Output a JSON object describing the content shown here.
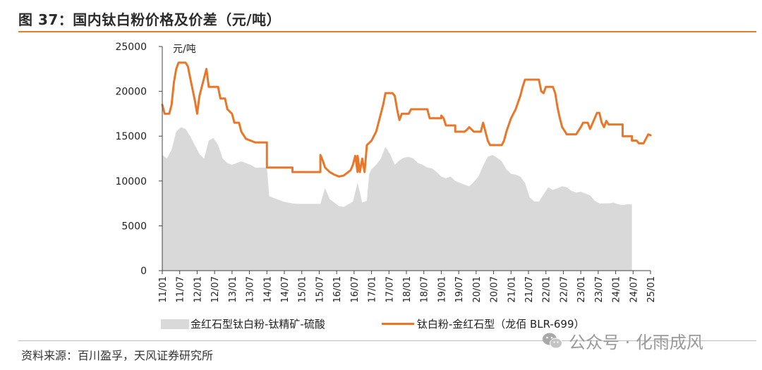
{
  "title": "图 37：国内钛白粉价格及价差（元/吨）",
  "source": "资料来源：百川盈孚，天风证券研究所",
  "watermark": "公众号 · 化雨成风",
  "colors": {
    "accent": "#e47d2c",
    "area": "#d9d9d9",
    "line": "#e8772a"
  },
  "chart_data": {
    "type": "line",
    "ylabel": "元/吨",
    "ylim": [
      0,
      25000
    ],
    "yticks": [
      0,
      5000,
      10000,
      15000,
      20000,
      25000
    ],
    "x_tick_labels": [
      "11/01",
      "11/07",
      "12/01",
      "12/07",
      "13/01",
      "13/07",
      "14/01",
      "14/07",
      "15/01",
      "15/07",
      "16/01",
      "16/07",
      "17/01",
      "17/07",
      "18/01",
      "18/07",
      "19/01",
      "19/07",
      "20/01",
      "20/07",
      "21/01",
      "21/07",
      "22/01",
      "22/07",
      "23/01",
      "23/07",
      "24/01",
      "24/07",
      "25/01"
    ],
    "legend_position": "bottom",
    "series": [
      {
        "name": "金红石型钛白粉-钛精矿-硫酸",
        "type": "area",
        "color": "#d9d9d9",
        "points": [
          [
            0,
            12900
          ],
          [
            1,
            12500
          ],
          [
            2,
            13500
          ],
          [
            3,
            15500
          ],
          [
            4,
            16000
          ],
          [
            5,
            15800
          ],
          [
            6,
            15000
          ],
          [
            7,
            14000
          ],
          [
            8,
            13000
          ],
          [
            9,
            12500
          ],
          [
            10,
            14500
          ],
          [
            11,
            14800
          ],
          [
            12,
            14000
          ],
          [
            13,
            12500
          ],
          [
            14,
            12000
          ],
          [
            15,
            11800
          ],
          [
            16,
            12000
          ],
          [
            17,
            12200
          ],
          [
            18,
            12000
          ],
          [
            19,
            11800
          ],
          [
            20,
            11500
          ],
          [
            21,
            11500
          ],
          [
            22,
            11500
          ],
          [
            22.5,
            11500
          ],
          [
            23,
            8300
          ],
          [
            24,
            8100
          ],
          [
            25,
            7900
          ],
          [
            26,
            7700
          ],
          [
            27,
            7600
          ],
          [
            28,
            7500
          ],
          [
            29,
            7450
          ],
          [
            30,
            7450
          ],
          [
            31,
            7450
          ],
          [
            32,
            7450
          ],
          [
            33,
            7450
          ],
          [
            34,
            7450
          ],
          [
            35,
            9200
          ],
          [
            36,
            8000
          ],
          [
            37,
            7600
          ],
          [
            38,
            7200
          ],
          [
            39,
            7100
          ],
          [
            40,
            7400
          ],
          [
            41,
            7700
          ],
          [
            42,
            9800
          ],
          [
            43,
            7600
          ],
          [
            44,
            7800
          ],
          [
            44.5,
            10800
          ],
          [
            45,
            11300
          ],
          [
            46,
            11800
          ],
          [
            47,
            12500
          ],
          [
            48,
            13800
          ],
          [
            49,
            13000
          ],
          [
            50,
            11800
          ],
          [
            51,
            12300
          ],
          [
            52,
            12600
          ],
          [
            53,
            12700
          ],
          [
            54,
            12500
          ],
          [
            55,
            12000
          ],
          [
            56,
            11800
          ],
          [
            57,
            11500
          ],
          [
            58,
            11400
          ],
          [
            59,
            11000
          ],
          [
            60,
            10500
          ],
          [
            61,
            10300
          ],
          [
            62,
            10500
          ],
          [
            63,
            10000
          ],
          [
            64,
            9800
          ],
          [
            65,
            9600
          ],
          [
            66,
            9400
          ],
          [
            67,
            9900
          ],
          [
            68,
            10500
          ],
          [
            69,
            11700
          ],
          [
            70,
            12700
          ],
          [
            71,
            12900
          ],
          [
            72,
            12600
          ],
          [
            73,
            12200
          ],
          [
            74,
            11300
          ],
          [
            75,
            10800
          ],
          [
            76,
            10700
          ],
          [
            77,
            10500
          ],
          [
            78,
            9800
          ],
          [
            79,
            8200
          ],
          [
            80,
            7700
          ],
          [
            81,
            7700
          ],
          [
            82,
            8500
          ],
          [
            83,
            9300
          ],
          [
            84,
            9000
          ],
          [
            85,
            9200
          ],
          [
            86,
            9400
          ],
          [
            87,
            9300
          ],
          [
            88,
            8900
          ],
          [
            89,
            8700
          ],
          [
            90,
            8800
          ],
          [
            91,
            8600
          ],
          [
            92,
            8400
          ],
          [
            93,
            7800
          ],
          [
            94,
            7500
          ],
          [
            95,
            7500
          ],
          [
            96,
            7500
          ],
          [
            97,
            7600
          ],
          [
            98,
            7400
          ],
          [
            99,
            7300
          ],
          [
            100,
            7400
          ],
          [
            101,
            7400
          ]
        ]
      },
      {
        "name": "钛白粉-金红石型（龙佰 BLR-699）",
        "type": "line",
        "color": "#e8772a",
        "points": [
          [
            0,
            18500
          ],
          [
            0.5,
            17500
          ],
          [
            1.5,
            17500
          ],
          [
            2,
            18500
          ],
          [
            2.5,
            21000
          ],
          [
            3,
            22500
          ],
          [
            3.5,
            23200
          ],
          [
            5,
            23200
          ],
          [
            5.5,
            22800
          ],
          [
            6,
            21500
          ],
          [
            7,
            19000
          ],
          [
            7.5,
            17500
          ],
          [
            8,
            19500
          ],
          [
            8.5,
            20500
          ],
          [
            9,
            21500
          ],
          [
            9.5,
            22500
          ],
          [
            10,
            20500
          ],
          [
            12,
            20500
          ],
          [
            12.5,
            19200
          ],
          [
            13.5,
            19200
          ],
          [
            14,
            18000
          ],
          [
            15,
            17500
          ],
          [
            15.5,
            16500
          ],
          [
            16.5,
            16500
          ],
          [
            17,
            15500
          ],
          [
            18,
            14700
          ],
          [
            19,
            14500
          ],
          [
            20,
            14300
          ],
          [
            22.5,
            14300
          ],
          [
            22.5,
            11500
          ],
          [
            28,
            11500
          ],
          [
            28,
            11000
          ],
          [
            33,
            11000
          ],
          [
            34,
            11000
          ],
          [
            34,
            12900
          ],
          [
            34.5,
            12300
          ],
          [
            35,
            11500
          ],
          [
            36,
            11000
          ],
          [
            37,
            10700
          ],
          [
            38,
            10500
          ],
          [
            39,
            10600
          ],
          [
            40,
            11000
          ],
          [
            40.5,
            11200
          ],
          [
            41,
            11800
          ],
          [
            41.5,
            12800
          ],
          [
            42,
            11000
          ],
          [
            42,
            12800
          ],
          [
            42.5,
            11000
          ],
          [
            43,
            12500
          ],
          [
            43.5,
            11000
          ],
          [
            44,
            14000
          ],
          [
            45,
            14500
          ],
          [
            46,
            15500
          ],
          [
            47,
            17500
          ],
          [
            47.5,
            18500
          ],
          [
            48,
            19800
          ],
          [
            49.5,
            19800
          ],
          [
            50,
            19500
          ],
          [
            50.5,
            18000
          ],
          [
            51,
            16800
          ],
          [
            51.5,
            17500
          ],
          [
            53,
            17500
          ],
          [
            53.5,
            18000
          ],
          [
            57,
            18000
          ],
          [
            57.5,
            17000
          ],
          [
            60,
            17000
          ],
          [
            60,
            17300
          ],
          [
            60.5,
            17000
          ],
          [
            61,
            16200
          ],
          [
            63,
            16200
          ],
          [
            63,
            15500
          ],
          [
            65,
            15500
          ],
          [
            65.5,
            15700
          ],
          [
            66,
            16000
          ],
          [
            67,
            15500
          ],
          [
            68.5,
            15500
          ],
          [
            69,
            16500
          ],
          [
            69.5,
            15500
          ],
          [
            70,
            14500
          ],
          [
            70.5,
            14000
          ],
          [
            73,
            14000
          ],
          [
            73.5,
            14500
          ],
          [
            74,
            15500
          ],
          [
            75,
            17000
          ],
          [
            76,
            18000
          ],
          [
            77,
            19500
          ],
          [
            77.5,
            20500
          ],
          [
            78,
            21300
          ],
          [
            81,
            21300
          ],
          [
            81.5,
            20000
          ],
          [
            82,
            19800
          ],
          [
            82.5,
            20500
          ],
          [
            84,
            20500
          ],
          [
            84.5,
            19800
          ],
          [
            85,
            18200
          ],
          [
            85.5,
            17000
          ],
          [
            86,
            16000
          ],
          [
            87,
            15200
          ],
          [
            89,
            15200
          ],
          [
            90,
            16000
          ],
          [
            90.5,
            16500
          ],
          [
            91.5,
            16500
          ],
          [
            92,
            15800
          ],
          [
            93,
            17000
          ],
          [
            93.5,
            17600
          ],
          [
            94,
            17600
          ],
          [
            94.5,
            16500
          ],
          [
            95,
            16000
          ],
          [
            95.5,
            16700
          ],
          [
            96,
            16300
          ],
          [
            99,
            16300
          ],
          [
            99,
            15000
          ],
          [
            101,
            15000
          ],
          [
            101,
            14500
          ],
          [
            102,
            14500
          ],
          [
            102.5,
            14200
          ],
          [
            103.5,
            14200
          ],
          [
            104,
            14700
          ],
          [
            104.5,
            15200
          ],
          [
            105,
            15100
          ]
        ]
      }
    ]
  }
}
